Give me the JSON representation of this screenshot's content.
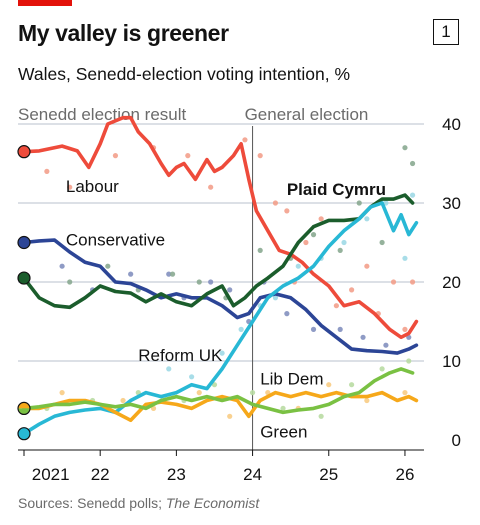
{
  "header": {
    "title": "My valley is greener",
    "badge": "1",
    "subtitle": "Wales, Senedd-election voting intention, %"
  },
  "footer": {
    "source_prefix": "Sources: Senedd polls; ",
    "source_name": "The Economist"
  },
  "chart_data": {
    "type": "line",
    "x_axis": {
      "domain": [
        2021.0,
        2026.25
      ],
      "ticks": [
        {
          "x": 2021.35,
          "label": "2021"
        },
        {
          "x": 2022.0,
          "label": "22"
        },
        {
          "x": 2023.0,
          "label": "23"
        },
        {
          "x": 2024.0,
          "label": "24"
        },
        {
          "x": 2025.0,
          "label": "25"
        },
        {
          "x": 2026.0,
          "label": "26"
        }
      ]
    },
    "y_axis": {
      "range": [
        0,
        40
      ],
      "ticks": [
        0,
        10,
        20,
        30,
        40
      ],
      "grid": true,
      "side": "right"
    },
    "annotations": [
      {
        "label": "Senedd election result",
        "at_x": 2021.0
      },
      {
        "label": "General election",
        "at_x": 2024.0
      }
    ],
    "series": [
      {
        "name": "Labour",
        "color": "#ee4b3b",
        "dot_color": "#f3a08c",
        "start_marker": 36.5,
        "line": [
          [
            2021.0,
            36.5
          ],
          [
            2021.2,
            36.6
          ],
          [
            2021.5,
            37.2
          ],
          [
            2021.7,
            36.6
          ],
          [
            2021.85,
            34.5
          ],
          [
            2022.0,
            37.5
          ],
          [
            2022.1,
            40.0
          ],
          [
            2022.3,
            40.8
          ],
          [
            2022.4,
            40.8
          ],
          [
            2022.5,
            39.0
          ],
          [
            2022.65,
            37.5
          ],
          [
            2022.8,
            35.0
          ],
          [
            2022.9,
            33.5
          ],
          [
            2023.0,
            34.5
          ],
          [
            2023.1,
            35.0
          ],
          [
            2023.25,
            33.0
          ],
          [
            2023.4,
            35.5
          ],
          [
            2023.5,
            34.0
          ],
          [
            2023.6,
            34.5
          ],
          [
            2023.75,
            36.0
          ],
          [
            2023.85,
            37.5
          ],
          [
            2023.95,
            33.0
          ],
          [
            2024.05,
            29.0
          ],
          [
            2024.2,
            26.5
          ],
          [
            2024.35,
            24.0
          ],
          [
            2024.5,
            23.5
          ],
          [
            2024.65,
            22.5
          ],
          [
            2024.8,
            21.0
          ],
          [
            2025.0,
            19.5
          ],
          [
            2025.2,
            17.0
          ],
          [
            2025.4,
            17.5
          ],
          [
            2025.6,
            16.0
          ],
          [
            2025.8,
            14.0
          ],
          [
            2025.95,
            13.0
          ],
          [
            2026.05,
            13.5
          ],
          [
            2026.15,
            15.0
          ]
        ],
        "polls": [
          [
            2021.3,
            34
          ],
          [
            2021.6,
            32
          ],
          [
            2022.2,
            36
          ],
          [
            2022.7,
            37
          ],
          [
            2023.15,
            36
          ],
          [
            2023.45,
            32
          ],
          [
            2023.9,
            38
          ],
          [
            2024.1,
            36
          ],
          [
            2024.3,
            30
          ],
          [
            2024.45,
            29
          ],
          [
            2024.55,
            20
          ],
          [
            2024.7,
            25
          ],
          [
            2024.9,
            28
          ],
          [
            2025.1,
            17
          ],
          [
            2025.3,
            19
          ],
          [
            2025.5,
            22
          ],
          [
            2025.65,
            16
          ],
          [
            2025.85,
            20
          ],
          [
            2026.0,
            14
          ],
          [
            2026.1,
            20
          ]
        ]
      },
      {
        "name": "Conservative",
        "color": "#2c4596",
        "dot_color": "#8390bf",
        "start_marker": 25.0,
        "line": [
          [
            2021.0,
            25.0
          ],
          [
            2021.2,
            25.2
          ],
          [
            2021.4,
            25.3
          ],
          [
            2021.6,
            23.8
          ],
          [
            2021.8,
            22.5
          ],
          [
            2022.0,
            22.0
          ],
          [
            2022.2,
            20.0
          ],
          [
            2022.4,
            19.8
          ],
          [
            2022.6,
            19.0
          ],
          [
            2022.8,
            18.0
          ],
          [
            2023.0,
            18.5
          ],
          [
            2023.2,
            18.0
          ],
          [
            2023.4,
            18.0
          ],
          [
            2023.6,
            17.0
          ],
          [
            2023.8,
            15.5
          ],
          [
            2023.95,
            16.0
          ],
          [
            2024.1,
            18.0
          ],
          [
            2024.3,
            18.5
          ],
          [
            2024.5,
            18.0
          ],
          [
            2024.7,
            16.5
          ],
          [
            2024.9,
            14.5
          ],
          [
            2025.1,
            13.0
          ],
          [
            2025.3,
            11.5
          ],
          [
            2025.5,
            11.3
          ],
          [
            2025.7,
            11.2
          ],
          [
            2025.9,
            11.0
          ],
          [
            2026.05,
            11.5
          ],
          [
            2026.15,
            12.0
          ]
        ],
        "polls": [
          [
            2021.5,
            22
          ],
          [
            2021.9,
            19
          ],
          [
            2022.4,
            21
          ],
          [
            2022.9,
            21
          ],
          [
            2023.1,
            18
          ],
          [
            2023.45,
            20
          ],
          [
            2023.7,
            19
          ],
          [
            2023.95,
            15
          ],
          [
            2024.15,
            20
          ],
          [
            2024.45,
            16
          ],
          [
            2024.8,
            14
          ],
          [
            2025.15,
            14
          ],
          [
            2025.45,
            13
          ],
          [
            2025.75,
            12
          ],
          [
            2026.05,
            13
          ]
        ]
      },
      {
        "name": "Plaid Cymru",
        "color": "#1b5d2c",
        "dot_color": "#8aaa91",
        "start_marker": 20.5,
        "line": [
          [
            2021.0,
            20.5
          ],
          [
            2021.2,
            18.0
          ],
          [
            2021.4,
            17.0
          ],
          [
            2021.6,
            16.8
          ],
          [
            2021.8,
            18.0
          ],
          [
            2022.0,
            19.5
          ],
          [
            2022.2,
            18.8
          ],
          [
            2022.4,
            18.6
          ],
          [
            2022.6,
            17.5
          ],
          [
            2022.8,
            18.5
          ],
          [
            2023.0,
            17.5
          ],
          [
            2023.2,
            17.0
          ],
          [
            2023.4,
            18.5
          ],
          [
            2023.6,
            19.5
          ],
          [
            2023.75,
            17.0
          ],
          [
            2023.9,
            18.0
          ],
          [
            2024.05,
            19.5
          ],
          [
            2024.2,
            20.5
          ],
          [
            2024.4,
            22.0
          ],
          [
            2024.6,
            25.0
          ],
          [
            2024.8,
            27.0
          ],
          [
            2025.0,
            27.8
          ],
          [
            2025.2,
            27.8
          ],
          [
            2025.4,
            28.0
          ],
          [
            2025.55,
            29.5
          ],
          [
            2025.7,
            30.5
          ],
          [
            2025.85,
            30.5
          ],
          [
            2026.0,
            31.0
          ],
          [
            2026.1,
            30.0
          ]
        ],
        "polls": [
          [
            2021.6,
            20
          ],
          [
            2022.1,
            22
          ],
          [
            2022.5,
            19
          ],
          [
            2022.95,
            21
          ],
          [
            2023.3,
            20
          ],
          [
            2023.65,
            18
          ],
          [
            2024.1,
            24
          ],
          [
            2024.5,
            23
          ],
          [
            2024.8,
            26
          ],
          [
            2025.15,
            24
          ],
          [
            2025.4,
            30
          ],
          [
            2025.7,
            25
          ],
          [
            2026.0,
            37
          ],
          [
            2026.1,
            35
          ]
        ]
      },
      {
        "name": "Reform UK",
        "color": "#28b8d5",
        "dot_color": "#9fd9e6",
        "start_marker": 0.8,
        "line": [
          [
            2021.0,
            0.8
          ],
          [
            2021.2,
            2.0
          ],
          [
            2021.4,
            3.0
          ],
          [
            2021.6,
            3.5
          ],
          [
            2021.8,
            3.8
          ],
          [
            2022.0,
            4.0
          ],
          [
            2022.2,
            3.5
          ],
          [
            2022.4,
            5.0
          ],
          [
            2022.6,
            6.0
          ],
          [
            2022.8,
            5.5
          ],
          [
            2023.0,
            6.0
          ],
          [
            2023.2,
            7.0
          ],
          [
            2023.4,
            6.5
          ],
          [
            2023.6,
            9.0
          ],
          [
            2023.8,
            12.0
          ],
          [
            2024.0,
            15.0
          ],
          [
            2024.2,
            18.0
          ],
          [
            2024.4,
            19.5
          ],
          [
            2024.6,
            20.5
          ],
          [
            2024.8,
            22.0
          ],
          [
            2025.0,
            24.5
          ],
          [
            2025.2,
            26.5
          ],
          [
            2025.4,
            28.0
          ],
          [
            2025.55,
            29.5
          ],
          [
            2025.7,
            30.0
          ],
          [
            2025.85,
            26.5
          ],
          [
            2025.95,
            28.5
          ],
          [
            2026.05,
            26.0
          ],
          [
            2026.15,
            27.5
          ]
        ],
        "polls": [
          [
            2022.9,
            9
          ],
          [
            2023.2,
            8
          ],
          [
            2023.6,
            11
          ],
          [
            2023.85,
            14
          ],
          [
            2024.1,
            17
          ],
          [
            2024.3,
            18
          ],
          [
            2024.6,
            22
          ],
          [
            2024.9,
            23
          ],
          [
            2025.2,
            25
          ],
          [
            2025.5,
            28
          ],
          [
            2025.75,
            30
          ],
          [
            2026.0,
            23
          ],
          [
            2026.1,
            31
          ]
        ]
      },
      {
        "name": "Lib Dem",
        "color": "#f6a81a",
        "dot_color": "#f8cc84",
        "start_marker": 4.0,
        "line": [
          [
            2021.0,
            4.0
          ],
          [
            2021.2,
            4.0
          ],
          [
            2021.4,
            4.5
          ],
          [
            2021.6,
            5.0
          ],
          [
            2021.8,
            5.0
          ],
          [
            2022.0,
            4.5
          ],
          [
            2022.2,
            3.5
          ],
          [
            2022.4,
            2.5
          ],
          [
            2022.6,
            4.5
          ],
          [
            2022.8,
            4.8
          ],
          [
            2023.0,
            4.5
          ],
          [
            2023.2,
            4.0
          ],
          [
            2023.4,
            5.0
          ],
          [
            2023.6,
            5.5
          ],
          [
            2023.8,
            5.0
          ],
          [
            2023.95,
            3.0
          ],
          [
            2024.1,
            5.0
          ],
          [
            2024.3,
            6.0
          ],
          [
            2024.5,
            5.5
          ],
          [
            2024.7,
            6.0
          ],
          [
            2024.9,
            5.5
          ],
          [
            2025.1,
            6.0
          ],
          [
            2025.3,
            5.5
          ],
          [
            2025.5,
            5.5
          ],
          [
            2025.7,
            6.0
          ],
          [
            2025.9,
            5.0
          ],
          [
            2026.05,
            5.5
          ],
          [
            2026.15,
            5.0
          ]
        ],
        "polls": [
          [
            2021.5,
            6
          ],
          [
            2022.3,
            5
          ],
          [
            2022.7,
            4
          ],
          [
            2023.3,
            6
          ],
          [
            2023.7,
            3
          ],
          [
            2024.2,
            6
          ],
          [
            2024.6,
            4
          ],
          [
            2025.0,
            7
          ],
          [
            2025.5,
            5
          ],
          [
            2026.0,
            6
          ]
        ]
      },
      {
        "name": "Green",
        "color": "#7ac143",
        "dot_color": "#b9dca3",
        "start_marker": 4.0,
        "line": [
          [
            2021.0,
            4.0
          ],
          [
            2021.2,
            4.2
          ],
          [
            2021.4,
            4.5
          ],
          [
            2021.6,
            4.5
          ],
          [
            2021.8,
            4.8
          ],
          [
            2022.0,
            4.5
          ],
          [
            2022.2,
            4.2
          ],
          [
            2022.4,
            4.5
          ],
          [
            2022.6,
            4.0
          ],
          [
            2022.8,
            5.0
          ],
          [
            2023.0,
            5.5
          ],
          [
            2023.2,
            5.0
          ],
          [
            2023.4,
            5.5
          ],
          [
            2023.6,
            5.0
          ],
          [
            2023.8,
            5.5
          ],
          [
            2024.0,
            4.5
          ],
          [
            2024.2,
            4.0
          ],
          [
            2024.4,
            3.5
          ],
          [
            2024.6,
            3.8
          ],
          [
            2024.8,
            4.0
          ],
          [
            2025.0,
            4.5
          ],
          [
            2025.2,
            5.5
          ],
          [
            2025.4,
            6.0
          ],
          [
            2025.6,
            7.5
          ],
          [
            2025.8,
            8.5
          ],
          [
            2025.95,
            9.0
          ],
          [
            2026.1,
            8.5
          ]
        ],
        "polls": [
          [
            2021.3,
            4
          ],
          [
            2021.9,
            5
          ],
          [
            2022.5,
            6
          ],
          [
            2023.1,
            5
          ],
          [
            2023.5,
            7
          ],
          [
            2024.0,
            6
          ],
          [
            2024.4,
            4
          ],
          [
            2024.9,
            3
          ],
          [
            2025.3,
            7
          ],
          [
            2025.7,
            9
          ],
          [
            2026.05,
            10
          ]
        ]
      }
    ],
    "labels": [
      {
        "series": "Labour",
        "text": "Labour",
        "x": 2021.55,
        "y": 31.4,
        "bold": false
      },
      {
        "series": "Conservative",
        "text": "Conservative",
        "x": 2021.55,
        "y": 24.6,
        "bold": false
      },
      {
        "series": "Plaid Cymru",
        "text": "Plaid Cymru",
        "x": 2024.45,
        "y": 31.0,
        "bold": true
      },
      {
        "series": "Reform UK",
        "text": "Reform UK",
        "x": 2022.5,
        "y": 10.0,
        "bold": false
      },
      {
        "series": "Lib Dem",
        "text": "Lib Dem",
        "x": 2024.1,
        "y": 7.0,
        "bold": false
      },
      {
        "series": "Green",
        "text": "Green",
        "x": 2024.1,
        "y": 0.3,
        "bold": false
      }
    ]
  }
}
